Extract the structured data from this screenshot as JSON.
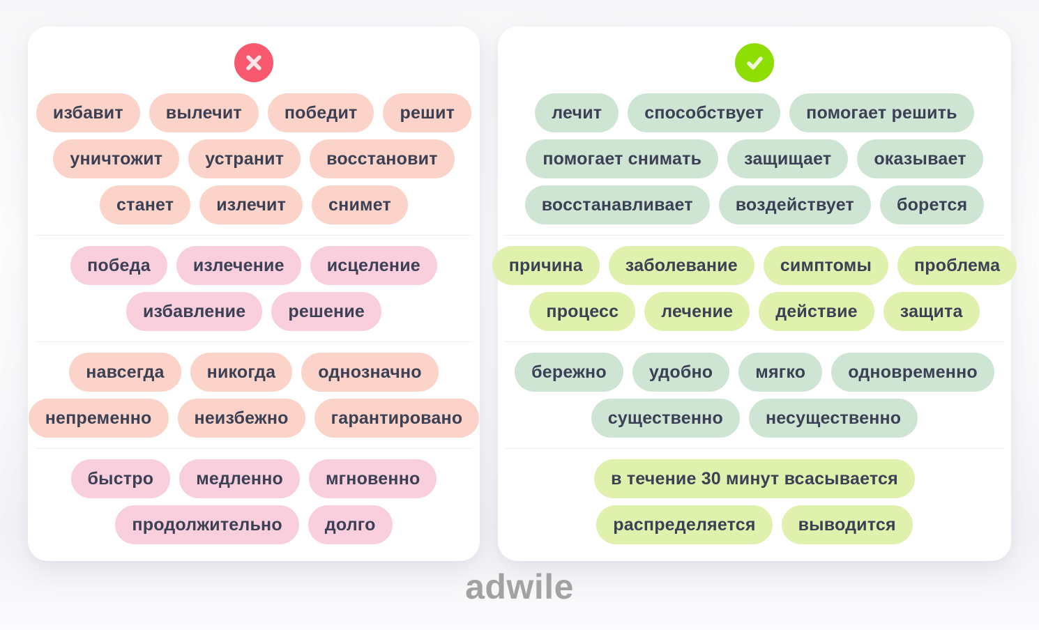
{
  "footer": {
    "logo": "adwile"
  },
  "colors": {
    "page-bg": "#f7f7f9",
    "card-bg": "#ffffff",
    "text": "#3b4054",
    "divider": "#ededf0",
    "bad": "#f8596f",
    "good": "#8edd04",
    "salmon": "#fbd3c8",
    "pink": "#f9cedd",
    "mint": "#cee5d3",
    "lime": "#e0f0ad",
    "logo": "#a2a2a2",
    "glyph": "#ffffff"
  },
  "cards": [
    {
      "name": "wrong-words-card",
      "icon": "cross-icon",
      "groups": [
        {
          "tone": "salmon",
          "rows": [
            [
              "избавит",
              "вылечит",
              "победит",
              "решит"
            ],
            [
              "уничтожит",
              "устранит",
              "восстановит"
            ],
            [
              "станет",
              "излечит",
              "снимет"
            ]
          ]
        },
        {
          "tone": "pink",
          "rows": [
            [
              "победа",
              "излечение",
              "исцеление"
            ],
            [
              "избавление",
              "решение"
            ]
          ]
        },
        {
          "tone": "salmon",
          "rows": [
            [
              "навсегда",
              "никогда",
              "однозначно"
            ],
            [
              "непременно",
              "неизбежно",
              "гарантировано"
            ]
          ]
        },
        {
          "tone": "pink",
          "rows": [
            [
              "быстро",
              "медленно",
              "мгновенно"
            ],
            [
              "продолжительно",
              "долго"
            ]
          ]
        }
      ]
    },
    {
      "name": "right-words-card",
      "icon": "check-icon",
      "groups": [
        {
          "tone": "mint",
          "rows": [
            [
              "лечит",
              "способствует",
              "помогает решить"
            ],
            [
              "помогает снимать",
              "защищает",
              "оказывает"
            ],
            [
              "восстанавливает",
              "воздействует",
              "борется"
            ]
          ]
        },
        {
          "tone": "lime",
          "rows": [
            [
              "причина",
              "заболевание",
              "симптомы",
              "проблема"
            ],
            [
              "процесс",
              "лечение",
              "действие",
              "защита"
            ]
          ]
        },
        {
          "tone": "mint",
          "rows": [
            [
              "бережно",
              "удобно",
              "мягко",
              "одновременно"
            ],
            [
              "существенно",
              "несущественно"
            ]
          ]
        },
        {
          "tone": "lime",
          "rows": [
            [
              "в течение 30 минут всасывается"
            ],
            [
              "распределяется",
              "выводится"
            ]
          ]
        }
      ]
    }
  ]
}
